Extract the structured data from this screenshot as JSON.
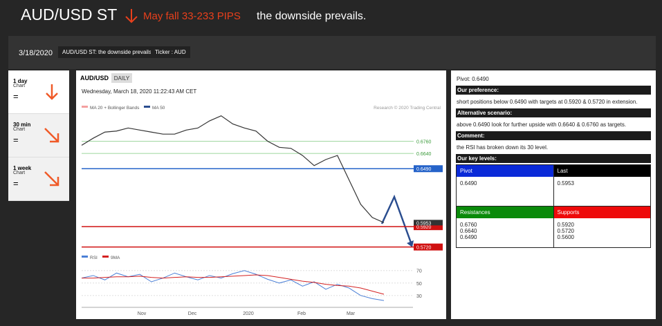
{
  "header": {
    "title": "AUD/USD ST",
    "target": "May fall 33-233 PIPS",
    "summary": "the downside prevails."
  },
  "toolbar": {
    "date": "3/18/2020",
    "tags": [
      "AUD/USD ST: the downside prevails.",
      "Ticker : AUD"
    ]
  },
  "timeframes": [
    {
      "period": "1 day",
      "label": "Chart",
      "sign": "="
    },
    {
      "period": "30 min",
      "label": "Chart",
      "sign": "="
    },
    {
      "period": "1 week",
      "label": "Chart",
      "sign": "="
    }
  ],
  "chart_data": {
    "type": "candlestick-summary",
    "symbol": "AUD/USD",
    "interval": "DAILY",
    "timestamp": "Wednesday, March 18, 2020 11:22:43 AM CET",
    "legend": [
      "MA 20 + Bollinger Bands",
      "MA 50"
    ],
    "credit": "Research © 2020 Trading Central",
    "close": [
      0.672,
      0.679,
      0.685,
      0.686,
      0.689,
      0.687,
      0.685,
      0.683,
      0.683,
      0.687,
      0.689,
      0.696,
      0.701,
      0.693,
      0.689,
      0.686,
      0.676,
      0.67,
      0.669,
      0.662,
      0.652,
      0.658,
      0.662,
      0.638,
      0.614,
      0.601,
      0.596
    ],
    "color": "#333333",
    "ylim": [
      0.567,
      0.713
    ],
    "levels": [
      {
        "value": 0.676,
        "label": "0.6760"
      },
      {
        "value": 0.664,
        "label": "0.6640"
      },
      {
        "value": 0.649,
        "label": "0.6490"
      },
      {
        "value": 0.592,
        "label": "0.5920"
      },
      {
        "value": 0.572,
        "label": "0.5720"
      }
    ],
    "last": {
      "value": 0.5953,
      "label": "0.5953"
    },
    "months": [
      "Nov",
      "Dec",
      "2020",
      "Feb",
      "Mar"
    ],
    "rsi_legend": [
      "RSI",
      "9MA"
    ],
    "rsi": [
      58,
      62,
      55,
      66,
      60,
      64,
      52,
      58,
      66,
      60,
      55,
      62,
      58,
      65,
      70,
      64,
      56,
      50,
      55,
      45,
      52,
      40,
      48,
      42,
      30,
      25,
      22
    ],
    "rsi_ma": [
      58,
      58,
      59,
      60,
      60,
      61,
      59,
      58,
      59,
      60,
      59,
      59,
      60,
      61,
      62,
      63,
      62,
      59,
      56,
      53,
      51,
      48,
      46,
      45,
      42,
      37,
      32
    ],
    "rsi_ylim": [
      11,
      83
    ],
    "rsi_yticks": [
      70,
      50,
      30
    ]
  },
  "sidebar": {
    "pivot": "Pivot: 0.6490",
    "sections": [
      {
        "title": "Our preference:",
        "text": "short positions below 0.6490 with targets at 0.5920 & 0.5720 in extension."
      },
      {
        "title": "Alternative scenario:",
        "text": "above 0.6490 look for further upside with 0.6640 & 0.6760 as targets."
      },
      {
        "title": "Comment:",
        "text": "the RSI has broken down its 30 level."
      }
    ],
    "key_levels_title": "Our key levels:",
    "key_levels": [
      {
        "name": "Pivot",
        "values": [
          "0.6490"
        ]
      },
      {
        "name": "Last",
        "values": [
          "0.5953"
        ]
      },
      {
        "name": "Resistances",
        "values": [
          "0.6760",
          "0.6640",
          "0.6490"
        ]
      },
      {
        "name": "Supports",
        "values": [
          "0.5920",
          "0.5720",
          "0.5600"
        ]
      }
    ]
  }
}
